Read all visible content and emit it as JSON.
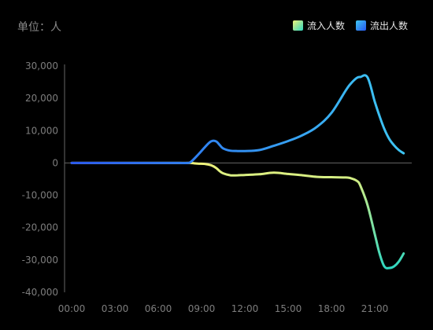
{
  "unit_label": "单位：人",
  "legend": [
    {
      "label": "流入人数"
    },
    {
      "label": "流出人数"
    }
  ],
  "colors": {
    "background": "#000000",
    "axis": "#666666",
    "tick_text": "#7d7d7d",
    "inflow_gradient": [
      "#f0f27a",
      "#2fd6c0"
    ],
    "outflow_gradient": [
      "#3ec7f2",
      "#2757f0"
    ]
  },
  "chart_data": {
    "type": "line",
    "x_tick_labels": [
      "00:00",
      "03:00",
      "06:00",
      "09:00",
      "12:00",
      "15:00",
      "18:00",
      "21:00"
    ],
    "y_tick_labels": [
      "30,000",
      "20,000",
      "10,000",
      "0",
      "-10,000",
      "-20,000",
      "-30,000",
      "-40,000"
    ],
    "ylim": [
      -40000,
      30000
    ],
    "series": [
      {
        "name": "流入人数",
        "x": [
          "00:00",
          "03:00",
          "06:00",
          "07:00",
          "07:30",
          "08:00",
          "08:15",
          "08:45",
          "09:15",
          "09:40",
          "10:00",
          "10:15",
          "10:30",
          "11:00",
          "11:30",
          "12:00",
          "13:00",
          "14:00",
          "15:00",
          "16:00",
          "17:00",
          "18:00",
          "19:00",
          "19:20",
          "19:45",
          "20:00",
          "20:30",
          "21:00",
          "21:20",
          "21:40",
          "22:00",
          "22:20",
          "22:40",
          "23:00"
        ],
        "y": [
          0,
          0,
          0,
          0,
          0,
          0,
          0,
          -200,
          -300,
          -700,
          -1500,
          -2500,
          -3200,
          -3800,
          -3800,
          -3700,
          -3500,
          -3000,
          -3400,
          -3800,
          -4300,
          -4400,
          -4500,
          -4700,
          -5500,
          -7000,
          -13000,
          -22000,
          -28000,
          -32000,
          -32500,
          -32000,
          -30500,
          -28000
        ]
      },
      {
        "name": "流出人数",
        "x": [
          "00:00",
          "03:00",
          "06:00",
          "07:00",
          "07:30",
          "08:00",
          "08:15",
          "08:45",
          "09:15",
          "09:40",
          "10:00",
          "10:15",
          "10:30",
          "11:00",
          "11:30",
          "12:00",
          "13:00",
          "14:00",
          "15:00",
          "16:00",
          "17:00",
          "18:00",
          "19:00",
          "19:20",
          "19:45",
          "20:00",
          "20:30",
          "21:00",
          "21:20",
          "21:40",
          "22:00",
          "22:20",
          "22:40",
          "23:00"
        ],
        "y": [
          0,
          0,
          0,
          0,
          0,
          0,
          300,
          2500,
          5000,
          6700,
          6700,
          5600,
          4500,
          3800,
          3700,
          3700,
          4000,
          5300,
          6800,
          8600,
          11200,
          15500,
          22500,
          24500,
          26300,
          26600,
          26500,
          19000,
          14500,
          10500,
          7500,
          5500,
          4000,
          3000
        ]
      }
    ]
  }
}
